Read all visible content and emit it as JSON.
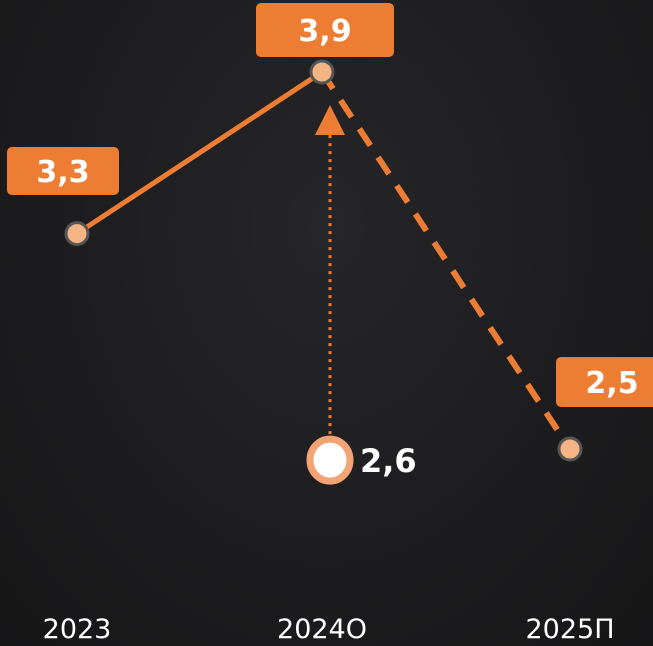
{
  "chart_data": {
    "type": "line",
    "categories": [
      "2023",
      "2024О",
      "2025П"
    ],
    "series": [
      {
        "values": [
          3.3,
          3.9,
          2.5
        ],
        "labels": [
          "3,3",
          "3,9",
          "2,5"
        ]
      }
    ],
    "extra_point": {
      "category": "2024О",
      "value": 2.6,
      "label": "2,6"
    },
    "ylim": [
      1.5,
      4.0
    ],
    "grid": false,
    "colors": {
      "line": "#ee7d34",
      "badge": "#ee7d34",
      "marker_fill": "#f5b486",
      "marker_stroke": "#555555",
      "extra_marker_fill": "#ffffff",
      "extra_marker_stroke": "#f2a474",
      "text": "#ffffff"
    }
  }
}
